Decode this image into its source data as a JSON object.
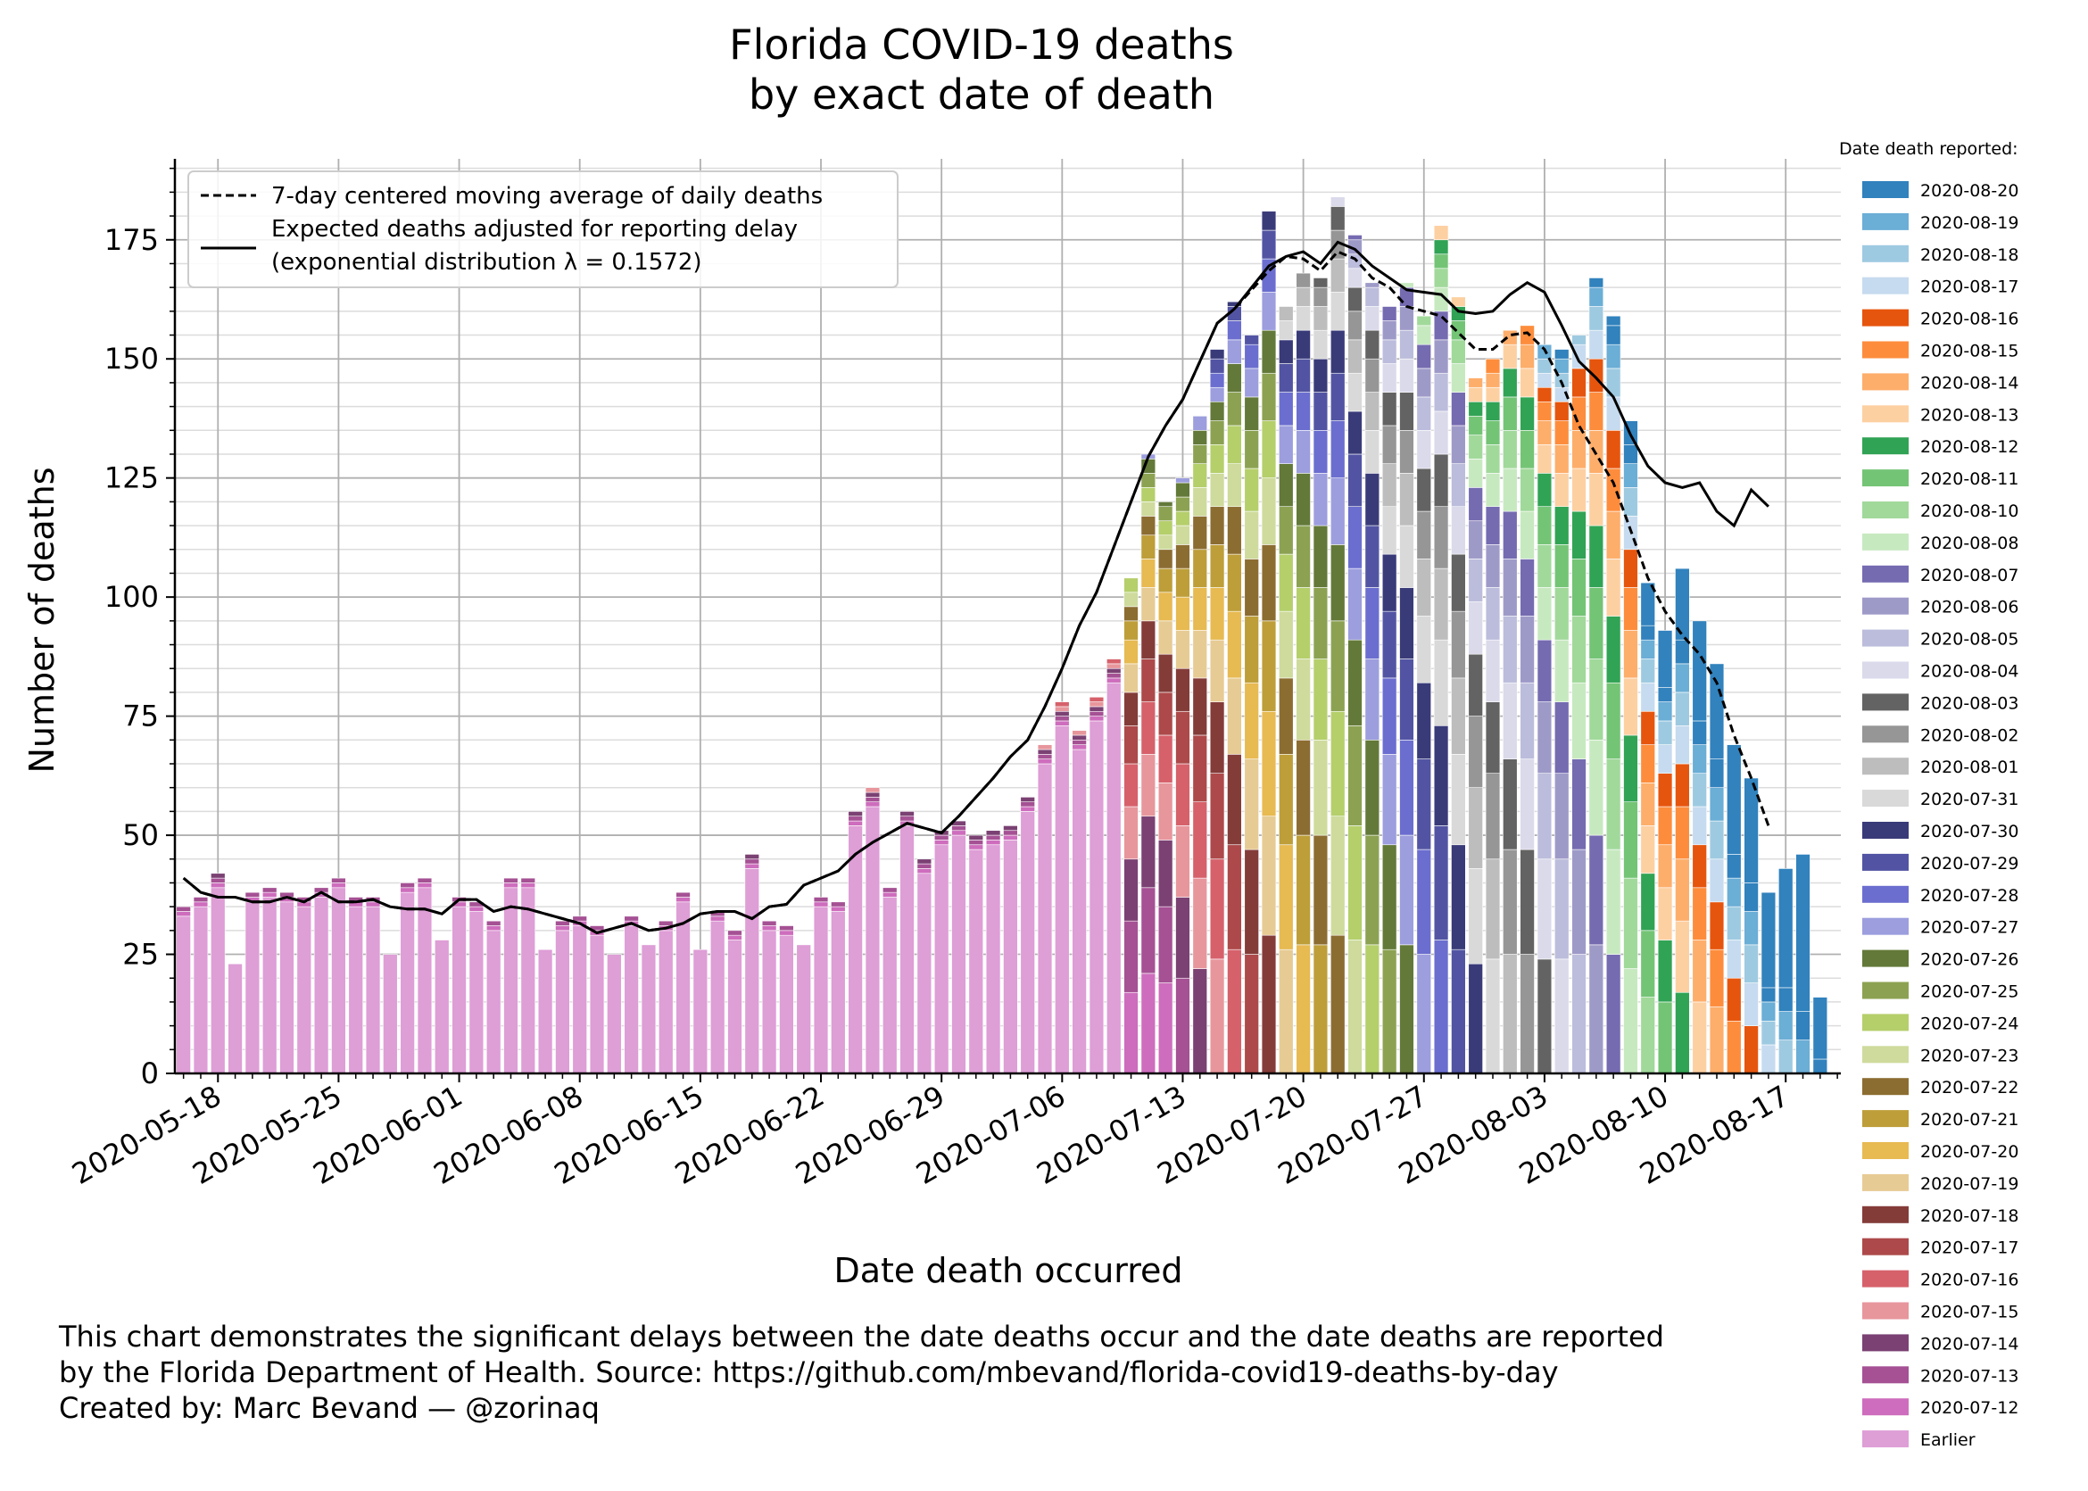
{
  "title": {
    "line1": "Florida COVID-19 deaths",
    "line2": "by exact date of death"
  },
  "footnote": {
    "line1": "This chart demonstrates the significant delays between the date deaths occur and the date deaths are reported",
    "line2": "by the Florida Department of Health. Source: https://github.com/mbevand/florida-covid19-deaths-by-day",
    "line3": "Created by: Marc Bevand — @zorinaq"
  },
  "chart_data": {
    "type": "bar",
    "stacked": true,
    "xlabel": "Date death occurred",
    "ylabel": "Number of deaths",
    "ylim": [
      0,
      192
    ],
    "yticks": [
      0,
      25,
      50,
      75,
      100,
      125,
      150,
      175
    ],
    "x_start": "2020-05-16",
    "xticks": [
      "2020-05-18",
      "2020-05-25",
      "2020-06-01",
      "2020-06-08",
      "2020-06-15",
      "2020-06-22",
      "2020-06-29",
      "2020-07-06",
      "2020-07-13",
      "2020-07-20",
      "2020-07-27",
      "2020-08-03",
      "2020-08-10",
      "2020-08-17"
    ],
    "grid": true,
    "legend_main": {
      "placement": "top-left",
      "entries": [
        {
          "style": "dashed",
          "label": "7-day centered moving average of daily deaths"
        },
        {
          "style": "solid",
          "label": "Expected deaths adjusted for reporting delay",
          "label2": "(exponential distribution λ = 0.1572)"
        }
      ]
    },
    "side_legend": {
      "title": "Date death reported:",
      "categories": [
        {
          "label": "2020-08-20",
          "color": "#3182bd"
        },
        {
          "label": "2020-08-19",
          "color": "#6baed6"
        },
        {
          "label": "2020-08-18",
          "color": "#9ecae1"
        },
        {
          "label": "2020-08-17",
          "color": "#c6dbef"
        },
        {
          "label": "2020-08-16",
          "color": "#e6550d"
        },
        {
          "label": "2020-08-15",
          "color": "#fd8d3c"
        },
        {
          "label": "2020-08-14",
          "color": "#fdae6b"
        },
        {
          "label": "2020-08-13",
          "color": "#fdd0a2"
        },
        {
          "label": "2020-08-12",
          "color": "#31a354"
        },
        {
          "label": "2020-08-11",
          "color": "#74c476"
        },
        {
          "label": "2020-08-10",
          "color": "#a1d99b"
        },
        {
          "label": "2020-08-08",
          "color": "#c7e9c0"
        },
        {
          "label": "2020-08-07",
          "color": "#756bb1"
        },
        {
          "label": "2020-08-06",
          "color": "#9e9ac8"
        },
        {
          "label": "2020-08-05",
          "color": "#bcbddc"
        },
        {
          "label": "2020-08-04",
          "color": "#dadaeb"
        },
        {
          "label": "2020-08-03",
          "color": "#636363"
        },
        {
          "label": "2020-08-02",
          "color": "#969696"
        },
        {
          "label": "2020-08-01",
          "color": "#bdbdbd"
        },
        {
          "label": "2020-07-31",
          "color": "#d9d9d9"
        },
        {
          "label": "2020-07-30",
          "color": "#393b79"
        },
        {
          "label": "2020-07-29",
          "color": "#5254a3"
        },
        {
          "label": "2020-07-28",
          "color": "#6b6ecf"
        },
        {
          "label": "2020-07-27",
          "color": "#9c9ede"
        },
        {
          "label": "2020-07-26",
          "color": "#637939"
        },
        {
          "label": "2020-07-25",
          "color": "#8ca252"
        },
        {
          "label": "2020-07-24",
          "color": "#b5cf6b"
        },
        {
          "label": "2020-07-23",
          "color": "#cedb9c"
        },
        {
          "label": "2020-07-22",
          "color": "#8c6d31"
        },
        {
          "label": "2020-07-21",
          "color": "#bd9e39"
        },
        {
          "label": "2020-07-20",
          "color": "#e7ba52"
        },
        {
          "label": "2020-07-19",
          "color": "#e7cb94"
        },
        {
          "label": "2020-07-18",
          "color": "#843c39"
        },
        {
          "label": "2020-07-17",
          "color": "#ad494a"
        },
        {
          "label": "2020-07-16",
          "color": "#d6616b"
        },
        {
          "label": "2020-07-15",
          "color": "#e7969c"
        },
        {
          "label": "2020-07-14",
          "color": "#7b4173"
        },
        {
          "label": "2020-07-13",
          "color": "#a55194"
        },
        {
          "label": "2020-07-12",
          "color": "#ce6dbd"
        },
        {
          "label": "Earlier",
          "color": "#de9ed6"
        }
      ]
    },
    "totals": [
      35,
      37,
      42,
      23,
      38,
      39,
      38,
      37,
      39,
      41,
      37,
      37,
      25,
      40,
      41,
      28,
      37,
      36,
      32,
      41,
      41,
      26,
      32,
      33,
      31,
      25,
      33,
      27,
      32,
      38,
      26,
      34,
      30,
      46,
      32,
      31,
      27,
      37,
      36,
      55,
      60,
      39,
      55,
      45,
      51,
      53,
      50,
      51,
      52,
      58,
      69,
      78,
      72,
      79,
      87,
      104,
      130,
      120,
      125,
      138,
      152,
      162,
      155,
      181,
      161,
      168,
      167,
      184,
      176,
      166,
      161,
      166,
      159,
      178,
      163,
      146,
      150,
      156,
      157,
      153,
      152,
      155,
      167,
      159,
      137,
      103,
      93,
      106,
      95,
      86,
      69,
      62,
      38,
      43,
      46,
      16
    ],
    "moving_avg": [
      [
        "2020-05-16",
        41
      ],
      [
        "2020-05-17",
        38
      ],
      [
        "2020-05-18",
        37
      ],
      [
        "2020-05-19",
        37
      ],
      [
        "2020-05-20",
        36
      ],
      [
        "2020-05-21",
        36
      ],
      [
        "2020-05-22",
        37
      ],
      [
        "2020-05-23",
        36
      ],
      [
        "2020-05-24",
        38
      ],
      [
        "2020-05-25",
        36
      ],
      [
        "2020-05-26",
        36
      ],
      [
        "2020-05-27",
        36.5
      ],
      [
        "2020-05-28",
        35
      ],
      [
        "2020-05-29",
        34.5
      ],
      [
        "2020-05-30",
        34.5
      ],
      [
        "2020-05-31",
        33.5
      ],
      [
        "2020-06-01",
        36.5
      ],
      [
        "2020-06-02",
        36.5
      ],
      [
        "2020-06-03",
        34
      ],
      [
        "2020-06-04",
        35
      ],
      [
        "2020-06-05",
        34.5
      ],
      [
        "2020-06-06",
        33.5
      ],
      [
        "2020-06-07",
        32.5
      ],
      [
        "2020-06-08",
        31.5
      ],
      [
        "2020-06-09",
        29.5
      ],
      [
        "2020-06-10",
        30.5
      ],
      [
        "2020-06-11",
        31.5
      ],
      [
        "2020-06-12",
        30
      ],
      [
        "2020-06-13",
        30.5
      ],
      [
        "2020-06-14",
        31.5
      ],
      [
        "2020-06-15",
        33.5
      ],
      [
        "2020-06-16",
        34
      ],
      [
        "2020-06-17",
        34
      ],
      [
        "2020-06-18",
        32.5
      ],
      [
        "2020-06-19",
        35
      ],
      [
        "2020-06-20",
        35.5
      ],
      [
        "2020-06-21",
        39.5
      ],
      [
        "2020-06-22",
        41
      ],
      [
        "2020-06-23",
        42.5
      ],
      [
        "2020-06-24",
        46
      ],
      [
        "2020-06-25",
        48.5
      ],
      [
        "2020-06-26",
        50.5
      ],
      [
        "2020-06-27",
        52.5
      ],
      [
        "2020-06-28",
        51.5
      ],
      [
        "2020-06-29",
        50.5
      ],
      [
        "2020-06-30",
        54
      ],
      [
        "2020-07-01",
        58
      ],
      [
        "2020-07-02",
        62
      ],
      [
        "2020-07-03",
        66.5
      ],
      [
        "2020-07-04",
        70
      ],
      [
        "2020-07-05",
        77
      ],
      [
        "2020-07-06",
        85
      ],
      [
        "2020-07-07",
        94
      ],
      [
        "2020-07-08",
        101
      ],
      [
        "2020-07-09",
        110.5
      ],
      [
        "2020-07-10",
        120
      ],
      [
        "2020-07-11",
        129.5
      ],
      [
        "2020-07-12",
        136
      ],
      [
        "2020-07-13",
        141.5
      ],
      [
        "2020-07-14",
        149.5
      ],
      [
        "2020-07-15",
        157.5
      ],
      [
        "2020-07-16",
        160.5
      ],
      [
        "2020-07-17",
        164.5
      ],
      [
        "2020-07-18",
        168.5
      ],
      [
        "2020-07-19",
        171.5
      ],
      [
        "2020-07-20",
        171
      ],
      [
        "2020-07-21",
        168.5
      ],
      [
        "2020-07-22",
        172.5
      ],
      [
        "2020-07-23",
        171
      ],
      [
        "2020-07-24",
        167
      ],
      [
        "2020-07-25",
        165
      ],
      [
        "2020-07-26",
        161
      ],
      [
        "2020-07-27",
        160
      ],
      [
        "2020-07-28",
        159
      ],
      [
        "2020-07-29",
        155.5
      ],
      [
        "2020-07-30",
        152
      ],
      [
        "2020-07-31",
        152
      ],
      [
        "2020-08-01",
        155
      ],
      [
        "2020-08-02",
        155.5
      ],
      [
        "2020-08-03",
        152
      ],
      [
        "2020-08-04",
        145
      ],
      [
        "2020-08-05",
        136
      ],
      [
        "2020-08-06",
        130
      ],
      [
        "2020-08-07",
        124
      ],
      [
        "2020-08-08",
        114
      ],
      [
        "2020-08-09",
        104
      ],
      [
        "2020-08-10",
        97
      ],
      [
        "2020-08-11",
        92
      ],
      [
        "2020-08-12",
        88
      ],
      [
        "2020-08-13",
        82
      ],
      [
        "2020-08-14",
        71
      ],
      [
        "2020-08-15",
        62
      ],
      [
        "2020-08-16",
        52
      ]
    ],
    "expected": [
      [
        "2020-05-16",
        41
      ],
      [
        "2020-05-17",
        38
      ],
      [
        "2020-05-18",
        37
      ],
      [
        "2020-05-19",
        37
      ],
      [
        "2020-05-20",
        36
      ],
      [
        "2020-05-21",
        36
      ],
      [
        "2020-05-22",
        37
      ],
      [
        "2020-05-23",
        36
      ],
      [
        "2020-05-24",
        38
      ],
      [
        "2020-05-25",
        36
      ],
      [
        "2020-05-26",
        36
      ],
      [
        "2020-05-27",
        36.5
      ],
      [
        "2020-05-28",
        35
      ],
      [
        "2020-05-29",
        34.5
      ],
      [
        "2020-05-30",
        34.5
      ],
      [
        "2020-05-31",
        33.5
      ],
      [
        "2020-06-01",
        36.5
      ],
      [
        "2020-06-02",
        36.5
      ],
      [
        "2020-06-03",
        34
      ],
      [
        "2020-06-04",
        35
      ],
      [
        "2020-06-05",
        34.5
      ],
      [
        "2020-06-06",
        33.5
      ],
      [
        "2020-06-07",
        32.5
      ],
      [
        "2020-06-08",
        31.5
      ],
      [
        "2020-06-09",
        29.5
      ],
      [
        "2020-06-10",
        30.5
      ],
      [
        "2020-06-11",
        31.5
      ],
      [
        "2020-06-12",
        30
      ],
      [
        "2020-06-13",
        30.5
      ],
      [
        "2020-06-14",
        31.5
      ],
      [
        "2020-06-15",
        33.5
      ],
      [
        "2020-06-16",
        34
      ],
      [
        "2020-06-17",
        34
      ],
      [
        "2020-06-18",
        32.5
      ],
      [
        "2020-06-19",
        35
      ],
      [
        "2020-06-20",
        35.5
      ],
      [
        "2020-06-21",
        39.5
      ],
      [
        "2020-06-22",
        41
      ],
      [
        "2020-06-23",
        42.5
      ],
      [
        "2020-06-24",
        46
      ],
      [
        "2020-06-25",
        48.5
      ],
      [
        "2020-06-26",
        50.5
      ],
      [
        "2020-06-27",
        52.5
      ],
      [
        "2020-06-28",
        51.5
      ],
      [
        "2020-06-29",
        50.5
      ],
      [
        "2020-06-30",
        54
      ],
      [
        "2020-07-01",
        58
      ],
      [
        "2020-07-02",
        62
      ],
      [
        "2020-07-03",
        66.5
      ],
      [
        "2020-07-04",
        70
      ],
      [
        "2020-07-05",
        77
      ],
      [
        "2020-07-06",
        85
      ],
      [
        "2020-07-07",
        94
      ],
      [
        "2020-07-08",
        101
      ],
      [
        "2020-07-09",
        110.5
      ],
      [
        "2020-07-10",
        120
      ],
      [
        "2020-07-11",
        129.5
      ],
      [
        "2020-07-12",
        136
      ],
      [
        "2020-07-13",
        141.5
      ],
      [
        "2020-07-14",
        149.5
      ],
      [
        "2020-07-15",
        157.5
      ],
      [
        "2020-07-16",
        160.5
      ],
      [
        "2020-07-17",
        165
      ],
      [
        "2020-07-18",
        169.5
      ],
      [
        "2020-07-19",
        171.5
      ],
      [
        "2020-07-20",
        172.5
      ],
      [
        "2020-07-21",
        170
      ],
      [
        "2020-07-22",
        174.5
      ],
      [
        "2020-07-23",
        173
      ],
      [
        "2020-07-24",
        169.5
      ],
      [
        "2020-07-25",
        167
      ],
      [
        "2020-07-26",
        164.5
      ],
      [
        "2020-07-27",
        164
      ],
      [
        "2020-07-28",
        163.5
      ],
      [
        "2020-07-29",
        160
      ],
      [
        "2020-07-30",
        159.5
      ],
      [
        "2020-07-31",
        160
      ],
      [
        "2020-08-01",
        163.5
      ],
      [
        "2020-08-02",
        166
      ],
      [
        "2020-08-03",
        164
      ],
      [
        "2020-08-04",
        157
      ],
      [
        "2020-08-05",
        149.5
      ],
      [
        "2020-08-06",
        146
      ],
      [
        "2020-08-07",
        142
      ],
      [
        "2020-08-08",
        134
      ],
      [
        "2020-08-09",
        127.5
      ],
      [
        "2020-08-10",
        124
      ],
      [
        "2020-08-11",
        123
      ],
      [
        "2020-08-12",
        124
      ],
      [
        "2020-08-13",
        118
      ],
      [
        "2020-08-14",
        115
      ],
      [
        "2020-08-15",
        122.5
      ],
      [
        "2020-08-16",
        119
      ]
    ]
  }
}
